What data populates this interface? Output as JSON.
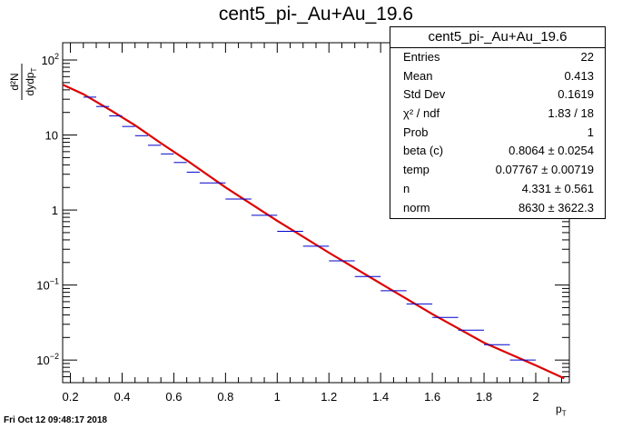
{
  "title": "cent5_pi-_Au+Au_19.6",
  "timestamp": "Fri Oct 12 09:48:17 2018",
  "axes": {
    "ylabel_num": "d²N",
    "ylabel_den": "dydp",
    "ylabel_den_sub": "T",
    "xlabel": "p",
    "xlabel_sub": "T"
  },
  "stats": {
    "header": "cent5_pi-_Au+Au_19.6",
    "rows": [
      {
        "key": "Entries",
        "value": "22"
      },
      {
        "key": "Mean",
        "value": "0.413"
      },
      {
        "key": "Std Dev",
        "value": "0.1619"
      },
      {
        "key": "χ² / ndf",
        "value": "1.83 / 18"
      },
      {
        "key": "Prob",
        "value": "1"
      },
      {
        "key": "beta (c)",
        "value": "0.8064 ± 0.0254"
      },
      {
        "key": "temp",
        "value": "0.07767 ± 0.00719"
      },
      {
        "key": "n",
        "value": "4.331 ± 0.561"
      },
      {
        "key": "norm",
        "value": "8630 ± 3622.3"
      }
    ]
  },
  "colors": {
    "data": "#0000cc",
    "fit": "#dd0000",
    "axis": "#000000"
  },
  "chart_data": {
    "type": "scatter",
    "log_y": true,
    "xlim": [
      0.17,
      2.13
    ],
    "ylim": [
      0.005,
      170
    ],
    "x_ticks": [
      0.2,
      0.4,
      0.6,
      0.8,
      1,
      1.2,
      1.4,
      1.6,
      1.8,
      2
    ],
    "y_ticks": [
      {
        "value": 0.01,
        "base": "10",
        "exp": "−2"
      },
      {
        "value": 0.1,
        "base": "10",
        "exp": "−1"
      },
      {
        "value": 1,
        "base": "1",
        "exp": ""
      },
      {
        "value": 10,
        "base": "10",
        "exp": ""
      },
      {
        "value": 100,
        "base": "10",
        "exp": "2"
      }
    ],
    "series": [
      {
        "name": "",
        "x_lo": [
          0.25,
          0.3,
          0.35,
          0.4,
          0.45,
          0.5,
          0.55,
          0.6,
          0.65,
          0.7,
          0.8,
          0.9,
          1.0,
          1.1,
          1.2,
          1.3,
          1.4,
          1.5,
          1.6,
          1.7,
          1.8,
          1.9
        ],
        "x_hi": [
          0.3,
          0.35,
          0.4,
          0.45,
          0.5,
          0.55,
          0.6,
          0.65,
          0.7,
          0.8,
          0.9,
          1.0,
          1.1,
          1.2,
          1.3,
          1.4,
          1.5,
          1.6,
          1.7,
          1.8,
          1.9,
          2.0
        ],
        "y": [
          32,
          24,
          18,
          13,
          9.8,
          7.3,
          5.6,
          4.3,
          3.2,
          2.3,
          1.4,
          0.85,
          0.52,
          0.33,
          0.21,
          0.13,
          0.084,
          0.056,
          0.037,
          0.025,
          0.016,
          0.01
        ]
      }
    ],
    "fit": {
      "name": "",
      "x_range": [
        0.17,
        2.11
      ],
      "points": [
        [
          0.17,
          47
        ],
        [
          0.25,
          35
        ],
        [
          0.35,
          22
        ],
        [
          0.45,
          13.5
        ],
        [
          0.55,
          7.8
        ],
        [
          0.65,
          4.6
        ],
        [
          0.8,
          2.0
        ],
        [
          1.0,
          0.72
        ],
        [
          1.2,
          0.27
        ],
        [
          1.4,
          0.105
        ],
        [
          1.6,
          0.041
        ],
        [
          1.8,
          0.017
        ],
        [
          2.0,
          0.0085
        ],
        [
          2.11,
          0.0057
        ]
      ]
    }
  }
}
